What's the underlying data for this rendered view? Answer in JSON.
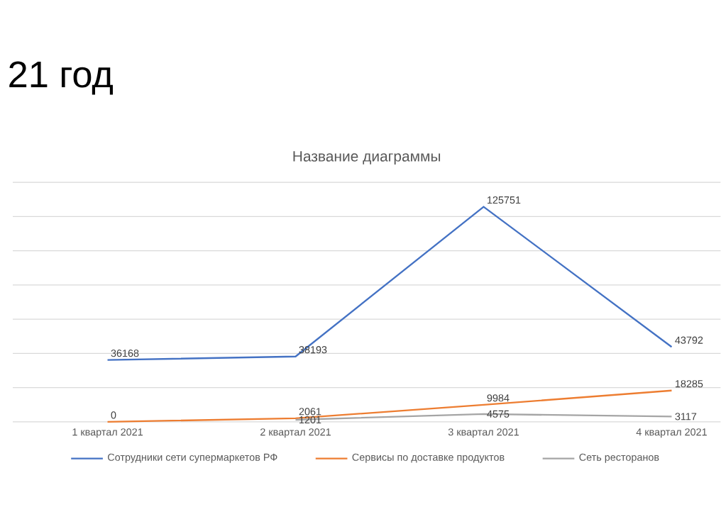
{
  "chart_data": {
    "type": "line",
    "title": "Название диаграммы",
    "annotations": [
      "21 год"
    ],
    "categories": [
      "1 квартал 2021",
      "2 квартал 2021",
      "3 квартал 2021",
      "4 квартал 2021"
    ],
    "series": [
      {
        "name": "Сотрудники сети супермаркетов РФ",
        "color": "#4472c4",
        "values": [
          36168,
          38193,
          125751,
          43792
        ]
      },
      {
        "name": "Сервисы по доставке продуктов",
        "color": "#ed7d31",
        "values": [
          0,
          2061,
          9984,
          18285
        ]
      },
      {
        "name": "Сеть ресторанов",
        "color": "#a5a5a5",
        "values": [
          null,
          1201,
          4575,
          3117
        ]
      }
    ],
    "ylim": [
      0,
      140000
    ],
    "yticks": [
      {
        "value": 0,
        "label": null
      },
      {
        "value": 20000,
        "label": null
      },
      {
        "value": 40000,
        "label": null
      },
      {
        "value": 60000,
        "label": null
      },
      {
        "value": 80000,
        "label": null
      },
      {
        "value": 100000,
        "label": null
      },
      {
        "value": 120000,
        "label": null
      },
      {
        "value": 140000,
        "label": null
      }
    ],
    "tick_labels": "x",
    "grid": "y",
    "legend": "bottom",
    "data_labels": true,
    "marker": "none",
    "line_style": "solid"
  }
}
